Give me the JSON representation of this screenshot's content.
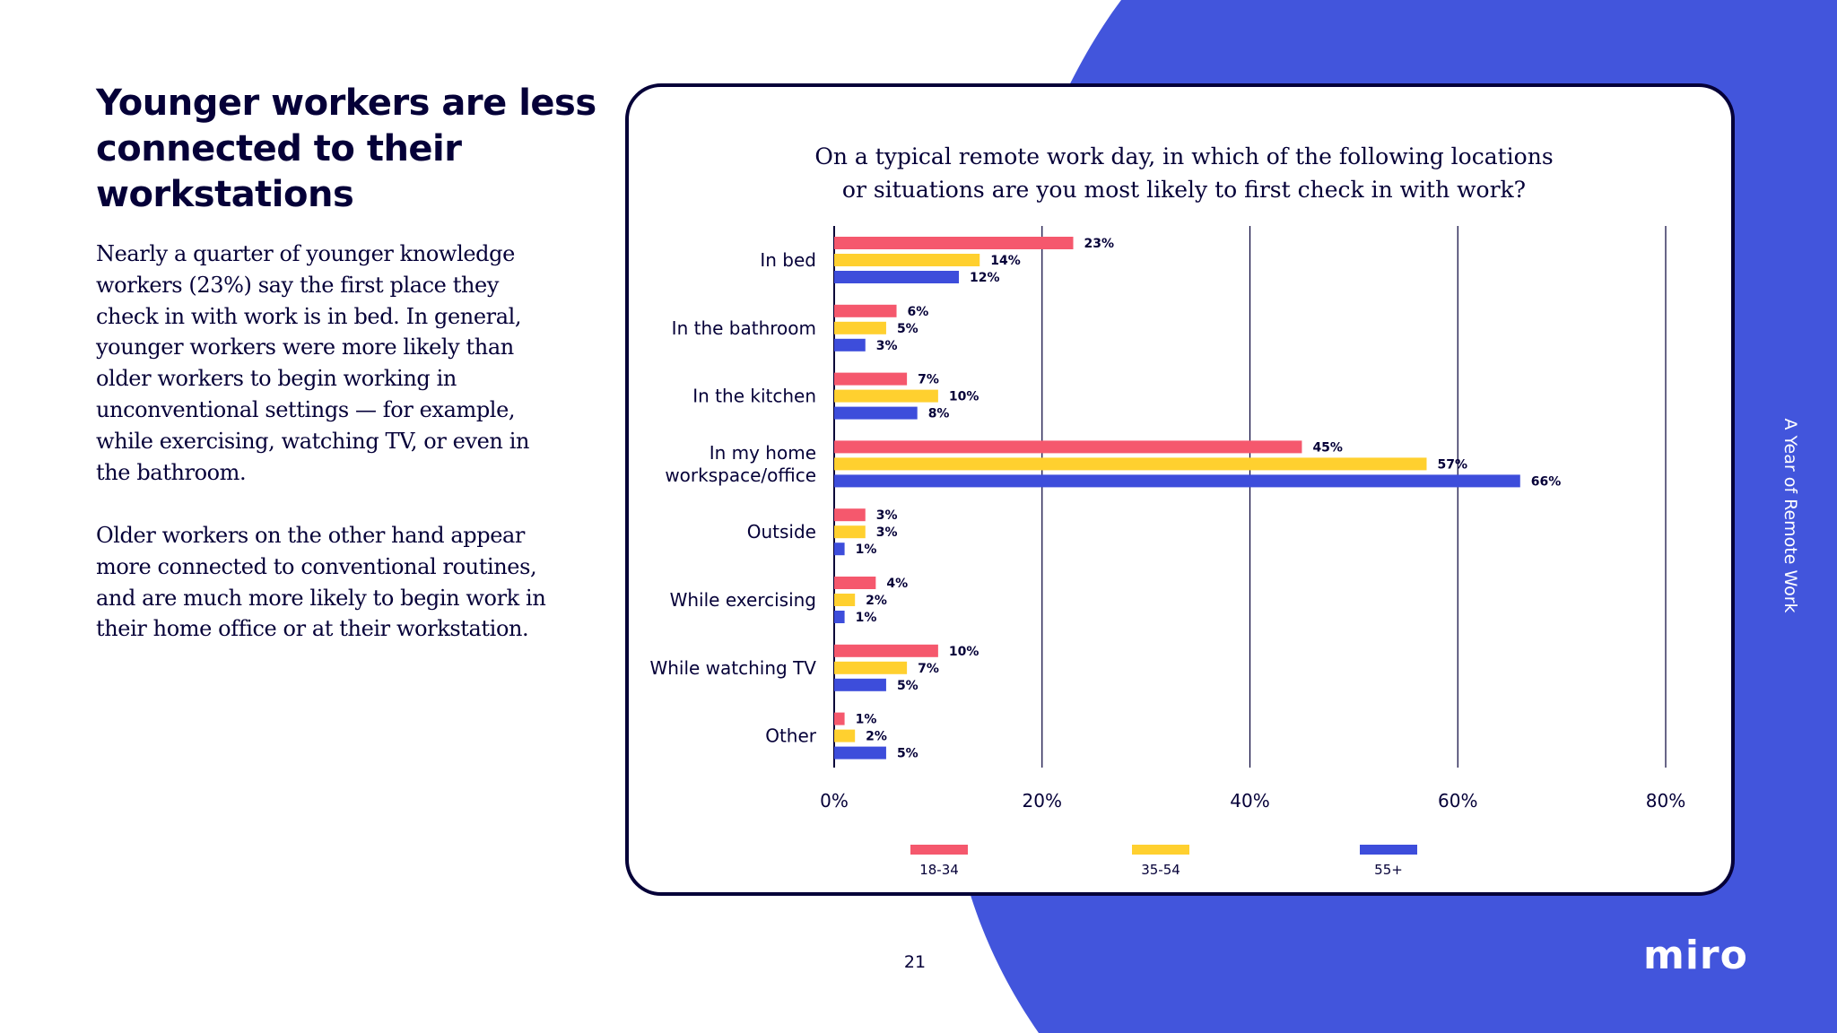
{
  "headline": "Younger workers are less connected to their workstations",
  "paragraphs": [
    "Nearly a quarter of younger knowledge workers (23%) say the first place they check in with work is in bed. In general, younger workers were more likely than older workers to begin working in unconventional settings — for example, while exercising, watching TV, or even in the bathroom.",
    "Older workers on the other hand appear more connected to conventional routines, and are much more likely to begin work in their home office or at their workstation."
  ],
  "side_label": "A Year of Remote Work",
  "page_number": "21",
  "logo_text": "miro",
  "colors": {
    "ink": "#050038",
    "brand_blue": "#4255DC"
  },
  "chart_data": {
    "type": "bar",
    "orientation": "horizontal",
    "title": "On a typical remote work day, in which of the following locations or situations are you most likely to first check in with work?",
    "categories": [
      [
        "In bed"
      ],
      [
        "In the bathroom"
      ],
      [
        "In the kitchen"
      ],
      [
        "In my home",
        "workspace/office"
      ],
      [
        "Outside"
      ],
      [
        "While exercising"
      ],
      [
        "While watching TV"
      ],
      [
        "Other"
      ]
    ],
    "series": [
      {
        "name": "18-34",
        "color": "#F5586D",
        "values": [
          23,
          6,
          7,
          45,
          3,
          4,
          10,
          1
        ]
      },
      {
        "name": "35-54",
        "color": "#FFD02F",
        "values": [
          14,
          5,
          10,
          57,
          3,
          2,
          7,
          2
        ]
      },
      {
        "name": "55+",
        "color": "#3D4DDB",
        "values": [
          12,
          3,
          8,
          66,
          1,
          1,
          5,
          5
        ]
      }
    ],
    "value_suffix": "%",
    "xlim": [
      0,
      80
    ],
    "xticks": [
      0,
      20,
      40,
      60,
      80
    ],
    "xtick_labels": [
      "0%",
      "20%",
      "40%",
      "60%",
      "80%"
    ],
    "grid": true,
    "legend_position": "bottom"
  }
}
